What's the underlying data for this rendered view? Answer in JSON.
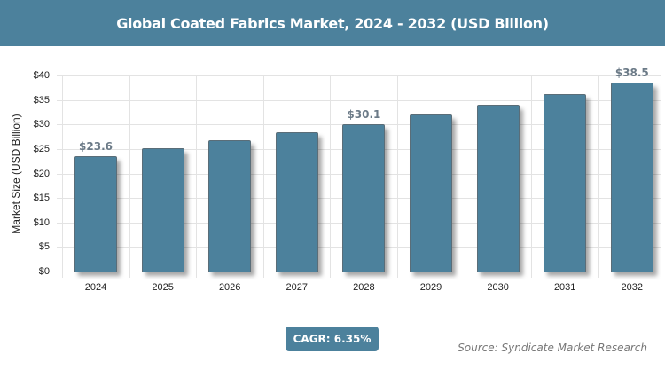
{
  "header": {
    "title": "Global Coated Fabrics Market, 2024 - 2032 (USD Billion)"
  },
  "chart_data": {
    "type": "bar",
    "title": "Global Coated Fabrics Market, 2024 - 2032 (USD Billion)",
    "xlabel": "",
    "ylabel": "Market Size (USD Billion)",
    "categories": [
      "2024",
      "2025",
      "2026",
      "2027",
      "2028",
      "2029",
      "2030",
      "2031",
      "2032"
    ],
    "values": [
      23.6,
      25.1,
      26.7,
      28.4,
      30.1,
      32.0,
      34.0,
      36.2,
      38.5
    ],
    "data_labels": {
      "2024": "$23.6",
      "2028": "$30.1",
      "2032": "$38.5"
    },
    "yticks": [
      "$0",
      "$5",
      "$10",
      "$15",
      "$20",
      "$25",
      "$30",
      "$35",
      "$40"
    ],
    "ylim": [
      0,
      40
    ],
    "grid": true,
    "bar_color": "#4c819c"
  },
  "footer": {
    "cagr": "CAGR: 6.35%",
    "source": "Source: Syndicate Market Research"
  }
}
